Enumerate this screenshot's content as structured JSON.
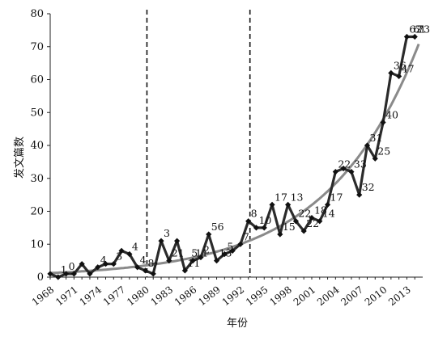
{
  "chart_data": {
    "type": "line",
    "title": "",
    "xlabel": "年份",
    "ylabel": "发文篇数",
    "xlim": [
      1968,
      2015
    ],
    "ylim": [
      0,
      80
    ],
    "y_ticks": [
      0,
      10,
      20,
      30,
      40,
      50,
      60,
      70,
      80
    ],
    "x_ticks": [
      1968,
      1971,
      1974,
      1977,
      1980,
      1983,
      1986,
      1989,
      1992,
      1995,
      1998,
      2001,
      2004,
      2007,
      2010,
      2013
    ],
    "grid": false,
    "legend": "none",
    "vertical_markers": [
      1980,
      1993
    ],
    "series": [
      {
        "x": [
          1968,
          1969,
          1970,
          1971,
          1972,
          1973,
          1974,
          1975,
          1976,
          1977,
          1978,
          1979,
          1980,
          1981,
          1982,
          1983,
          1984,
          1985,
          1986,
          1987,
          1988,
          1989,
          1990,
          1991,
          1992,
          1993,
          1994,
          1995,
          1996,
          1997,
          1998,
          1999,
          2000,
          2001,
          2002,
          2003,
          2004,
          2005,
          2006,
          2007,
          2008,
          2009,
          2010,
          2011,
          2012,
          2013,
          2014
        ],
        "values": [
          1,
          0,
          1,
          1,
          4,
          1,
          3,
          4,
          4,
          8,
          7,
          3,
          2,
          1,
          11,
          5,
          11,
          2,
          5,
          6,
          13,
          5,
          7,
          8,
          10,
          17,
          15,
          15,
          22,
          13,
          22,
          17,
          14,
          18,
          17,
          22,
          32,
          33,
          32,
          25,
          40,
          36,
          47,
          62,
          61,
          73,
          73
        ],
        "labels": [
          {
            "x": 1969,
            "text": "1"
          },
          {
            "x": 1970,
            "text": "0"
          },
          {
            "x": 1974,
            "text": "4"
          },
          {
            "x": 1976,
            "text": "3"
          },
          {
            "x": 1978,
            "text": "4"
          },
          {
            "x": 1979,
            "text": "4"
          },
          {
            "x": 1980,
            "text": "8"
          },
          {
            "x": 1980.5,
            "text": "7"
          },
          {
            "x": 1982,
            "text": "3"
          },
          {
            "x": 1983,
            "text": "21"
          },
          {
            "x": 1985,
            "text": "11"
          },
          {
            "x": 1985.5,
            "text": "5"
          },
          {
            "x": 1986,
            "text": "11"
          },
          {
            "x": 1987,
            "text": "2"
          },
          {
            "x": 1988,
            "text": "56"
          },
          {
            "x": 1989,
            "text": "13"
          },
          {
            "x": 1990,
            "text": "5"
          },
          {
            "x": 1992,
            "text": "7"
          },
          {
            "x": 1993,
            "text": "8"
          },
          {
            "x": 1994,
            "text": "10"
          },
          {
            "x": 1996,
            "text": "17"
          },
          {
            "x": 1997,
            "text": "15"
          },
          {
            "x": 1998,
            "text": "13"
          },
          {
            "x": 1999,
            "text": "22"
          },
          {
            "x": 2000,
            "text": "22"
          },
          {
            "x": 2001,
            "text": "18"
          },
          {
            "x": 2002,
            "text": "14"
          },
          {
            "x": 2003,
            "text": "17"
          },
          {
            "x": 2004,
            "text": "22"
          },
          {
            "x": 2006,
            "text": "33"
          },
          {
            "x": 2007,
            "text": "32"
          },
          {
            "x": 2008,
            "text": "31"
          },
          {
            "x": 2009,
            "text": "25"
          },
          {
            "x": 2010,
            "text": "40"
          },
          {
            "x": 2011,
            "text": "36"
          },
          {
            "x": 2012,
            "text": "47"
          },
          {
            "x": 2013,
            "text": "62"
          },
          {
            "x": 2013.5,
            "text": "61"
          },
          {
            "x": 2014,
            "text": "73"
          }
        ]
      }
    ],
    "trendline": {
      "type": "exponential"
    },
    "colors": {
      "series": "#2b2b2b",
      "trend": "#8a8a8a",
      "markers": "#111111"
    }
  }
}
